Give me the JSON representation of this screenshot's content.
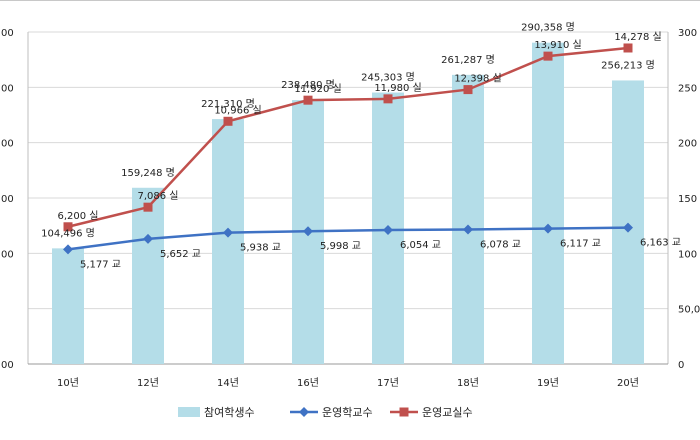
{
  "chart_data": {
    "type": "bar+line",
    "categories": [
      "10년",
      "12년",
      "14년",
      "16년",
      "17년",
      "18년",
      "19년",
      "20년"
    ],
    "bar_series": {
      "name": "참여학생수",
      "values": [
        104496,
        159248,
        221310,
        238480,
        245303,
        261287,
        290358,
        256213
      ],
      "labels": [
        "104,496 명",
        "159,248 명",
        "221,310 명",
        "238,480 명",
        "245,303 명",
        "261,287 명",
        "290,358 명",
        "256,213 명"
      ],
      "color": "#b4dde8"
    },
    "line_series": [
      {
        "name": "운영학교수",
        "values": [
          5177,
          5652,
          5938,
          5998,
          6054,
          6078,
          6117,
          6163
        ],
        "labels": [
          "5,177 교",
          "5,652 교",
          "5,938 교",
          "5,998 교",
          "6,054 교",
          "6,078 교",
          "6,117 교",
          "6,163 교"
        ],
        "color": "#3f72c4",
        "marker": "diamond"
      },
      {
        "name": "운영교실수",
        "values": [
          6200,
          7086,
          10966,
          11920,
          11980,
          12398,
          13910,
          14278
        ],
        "labels": [
          "6,200 실",
          "7,086 실",
          "10,966 실",
          "11,920 실",
          "11,980 실",
          "12,398 실",
          "13,910 실",
          "14,278 실"
        ],
        "color": "#c0504d",
        "marker": "square"
      }
    ],
    "left_axis": {
      "ticks_visible": [
        "00",
        "00",
        "00",
        "00",
        "00",
        "00"
      ],
      "range": [
        0,
        300000
      ]
    },
    "right_axis": {
      "ticks_visible": [
        "300",
        "250",
        "200",
        "150",
        "100",
        "50,0",
        "0"
      ],
      "range": [
        0,
        300000
      ]
    },
    "legend_position": "bottom",
    "grid": true
  }
}
